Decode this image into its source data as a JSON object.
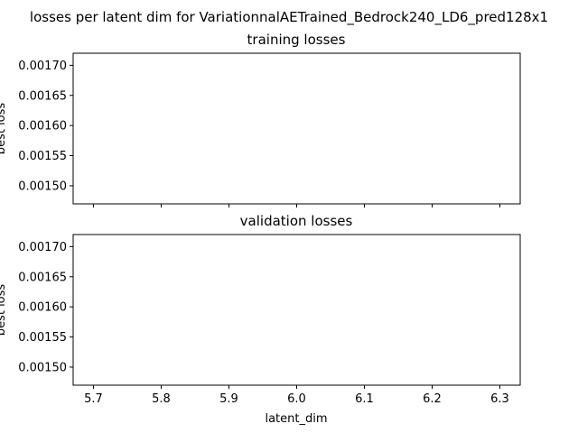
{
  "chart_data": {
    "suptitle": "losses per latent dim for VariationnalAETrained_Bedrock240_LD6_pred128x1",
    "shared_x": true,
    "xlabel": "latent_dim",
    "xlim": [
      5.67,
      6.33
    ],
    "x_ticks": [
      "5.7",
      "5.8",
      "5.9",
      "6.0",
      "6.1",
      "6.2",
      "6.3"
    ],
    "subplots": [
      {
        "type": "line",
        "title": "training losses",
        "ylabel": "best loss",
        "ylim": [
          0.00147,
          0.00172
        ],
        "y_ticks": [
          "0.00150",
          "0.00155",
          "0.00160",
          "0.00165",
          "0.00170"
        ],
        "series": []
      },
      {
        "type": "line",
        "title": "validation losses",
        "ylabel": "best loss",
        "ylim": [
          0.00147,
          0.00172
        ],
        "y_ticks": [
          "0.00150",
          "0.00155",
          "0.00160",
          "0.00165",
          "0.00170"
        ],
        "series": []
      }
    ]
  }
}
